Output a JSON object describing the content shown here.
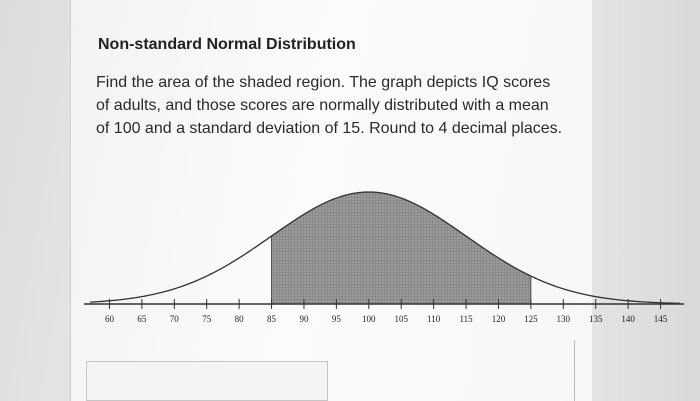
{
  "question": {
    "title": "Non-standard Normal Distribution",
    "prompt": "Find the area of the shaded region. The graph depicts IQ scores of adults, and those scores are normally distributed with a mean of 100 and a standard deviation of 15. Round to 4 decimal places."
  },
  "chart_data": {
    "type": "area",
    "distribution": "normal",
    "mean": 100,
    "sd": 15,
    "shaded_from": 85,
    "shaded_to": 125,
    "xlim": [
      57,
      148
    ],
    "ticks": [
      60,
      65,
      70,
      75,
      80,
      85,
      90,
      95,
      100,
      105,
      110,
      115,
      120,
      125,
      130,
      135,
      140,
      145
    ],
    "tick_labels": [
      "60",
      "65",
      "70",
      "75",
      "80",
      "85",
      "90",
      "95",
      "100",
      "105",
      "110",
      "115",
      "120",
      "125",
      "130",
      "135",
      "140",
      "145"
    ],
    "title": "",
    "xlabel": "",
    "ylabel": "",
    "colors": {
      "curve": "#333333",
      "shade": "#8a8a8a",
      "axis": "#333333"
    }
  },
  "answer": {
    "value": ""
  }
}
